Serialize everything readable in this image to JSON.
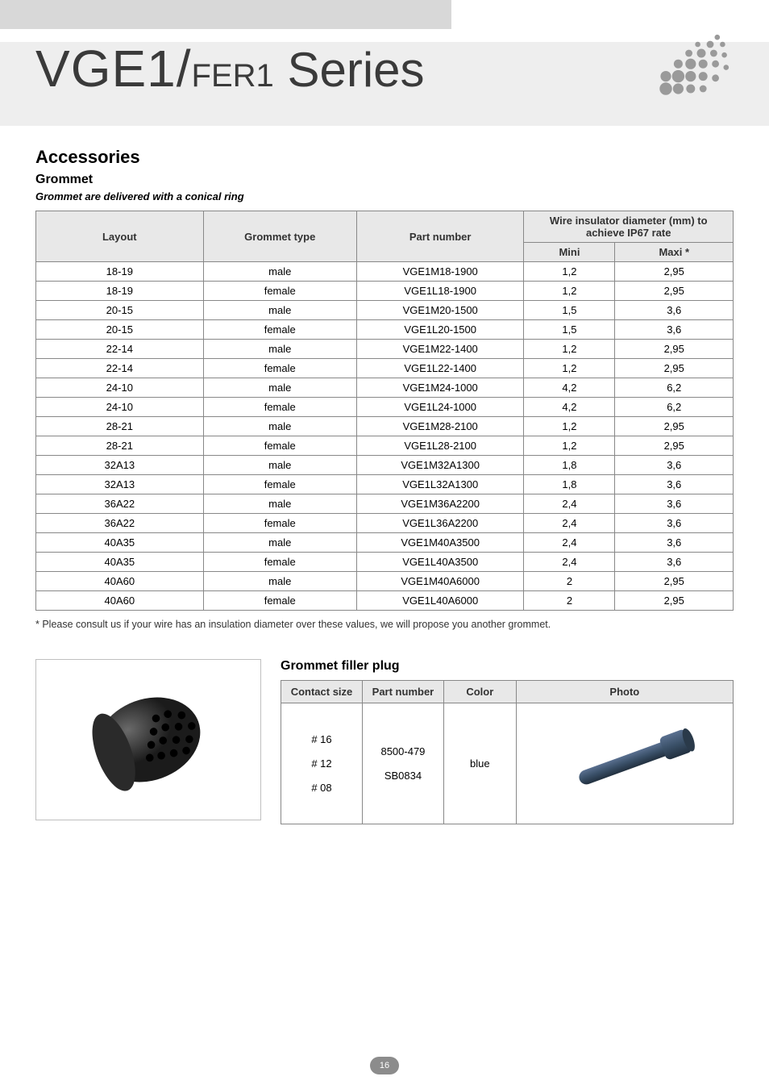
{
  "title": {
    "main": "VGE1/",
    "sub": "FER1",
    "series": " Series"
  },
  "logo": {
    "dot_color": "#9a9a9a",
    "background": "#ffffff"
  },
  "section_heading": "Accessories",
  "grommet": {
    "heading": "Grommet",
    "subnote": "Grommet are delivered with a conical ring",
    "columns": {
      "layout": "Layout",
      "type": "Grommet type",
      "pn": "Part number",
      "diam_group": "Wire insulator diameter (mm) to achieve  IP67 rate",
      "mini": "Mini",
      "maxi": "Maxi *"
    },
    "rows": [
      {
        "layout": "18-19",
        "type": "male",
        "pn": "VGE1M18-1900",
        "mini": "1,2",
        "maxi": "2,95"
      },
      {
        "layout": "18-19",
        "type": "female",
        "pn": "VGE1L18-1900",
        "mini": "1,2",
        "maxi": "2,95"
      },
      {
        "layout": "20-15",
        "type": "male",
        "pn": "VGE1M20-1500",
        "mini": "1,5",
        "maxi": "3,6"
      },
      {
        "layout": "20-15",
        "type": "female",
        "pn": "VGE1L20-1500",
        "mini": "1,5",
        "maxi": "3,6"
      },
      {
        "layout": "22-14",
        "type": "male",
        "pn": "VGE1M22-1400",
        "mini": "1,2",
        "maxi": "2,95"
      },
      {
        "layout": "22-14",
        "type": "female",
        "pn": "VGE1L22-1400",
        "mini": "1,2",
        "maxi": "2,95"
      },
      {
        "layout": "24-10",
        "type": "male",
        "pn": "VGE1M24-1000",
        "mini": "4,2",
        "maxi": "6,2"
      },
      {
        "layout": "24-10",
        "type": "female",
        "pn": "VGE1L24-1000",
        "mini": "4,2",
        "maxi": "6,2"
      },
      {
        "layout": "28-21",
        "type": "male",
        "pn": "VGE1M28-2100",
        "mini": "1,2",
        "maxi": "2,95"
      },
      {
        "layout": "28-21",
        "type": "female",
        "pn": "VGE1L28-2100",
        "mini": "1,2",
        "maxi": "2,95"
      },
      {
        "layout": "32A13",
        "type": "male",
        "pn": "VGE1M32A1300",
        "mini": "1,8",
        "maxi": "3,6"
      },
      {
        "layout": "32A13",
        "type": "female",
        "pn": "VGE1L32A1300",
        "mini": "1,8",
        "maxi": "3,6"
      },
      {
        "layout": "36A22",
        "type": "male",
        "pn": "VGE1M36A2200",
        "mini": "2,4",
        "maxi": "3,6"
      },
      {
        "layout": "36A22",
        "type": "female",
        "pn": "VGE1L36A2200",
        "mini": "2,4",
        "maxi": "3,6"
      },
      {
        "layout": "40A35",
        "type": "male",
        "pn": "VGE1M40A3500",
        "mini": "2,4",
        "maxi": "3,6"
      },
      {
        "layout": "40A35",
        "type": "female",
        "pn": "VGE1L40A3500",
        "mini": "2,4",
        "maxi": "3,6"
      },
      {
        "layout": "40A60",
        "type": "male",
        "pn": "VGE1M40A6000",
        "mini": "2",
        "maxi": "2,95"
      },
      {
        "layout": "40A60",
        "type": "female",
        "pn": "VGE1L40A6000",
        "mini": "2",
        "maxi": "2,95"
      }
    ],
    "footnote": "* Please consult us if your wire has an insulation diameter over these values, we will propose you another grommet."
  },
  "grommet_image": {
    "fill_color": "#1b1b1b",
    "highlight_color": "#6a6a6a"
  },
  "filler": {
    "heading": "Grommet filler plug",
    "columns": {
      "size": "Contact size",
      "pn": "Part number",
      "color": "Color",
      "photo": "Photo"
    },
    "rows": [
      {
        "size": "# 16",
        "pn": "8500-479",
        "color": "blue"
      },
      {
        "size": "# 12",
        "pn": "8500-479",
        "color": "blue"
      },
      {
        "size": "# 08",
        "pn": "SB0834",
        "color": ""
      }
    ],
    "display_sizes": "# 16\n\n# 12\n\n# 08",
    "display_pns": "8500-479\n\nSB0834",
    "display_color": "blue",
    "plug_color": "#3a5068"
  },
  "page_number": "16"
}
